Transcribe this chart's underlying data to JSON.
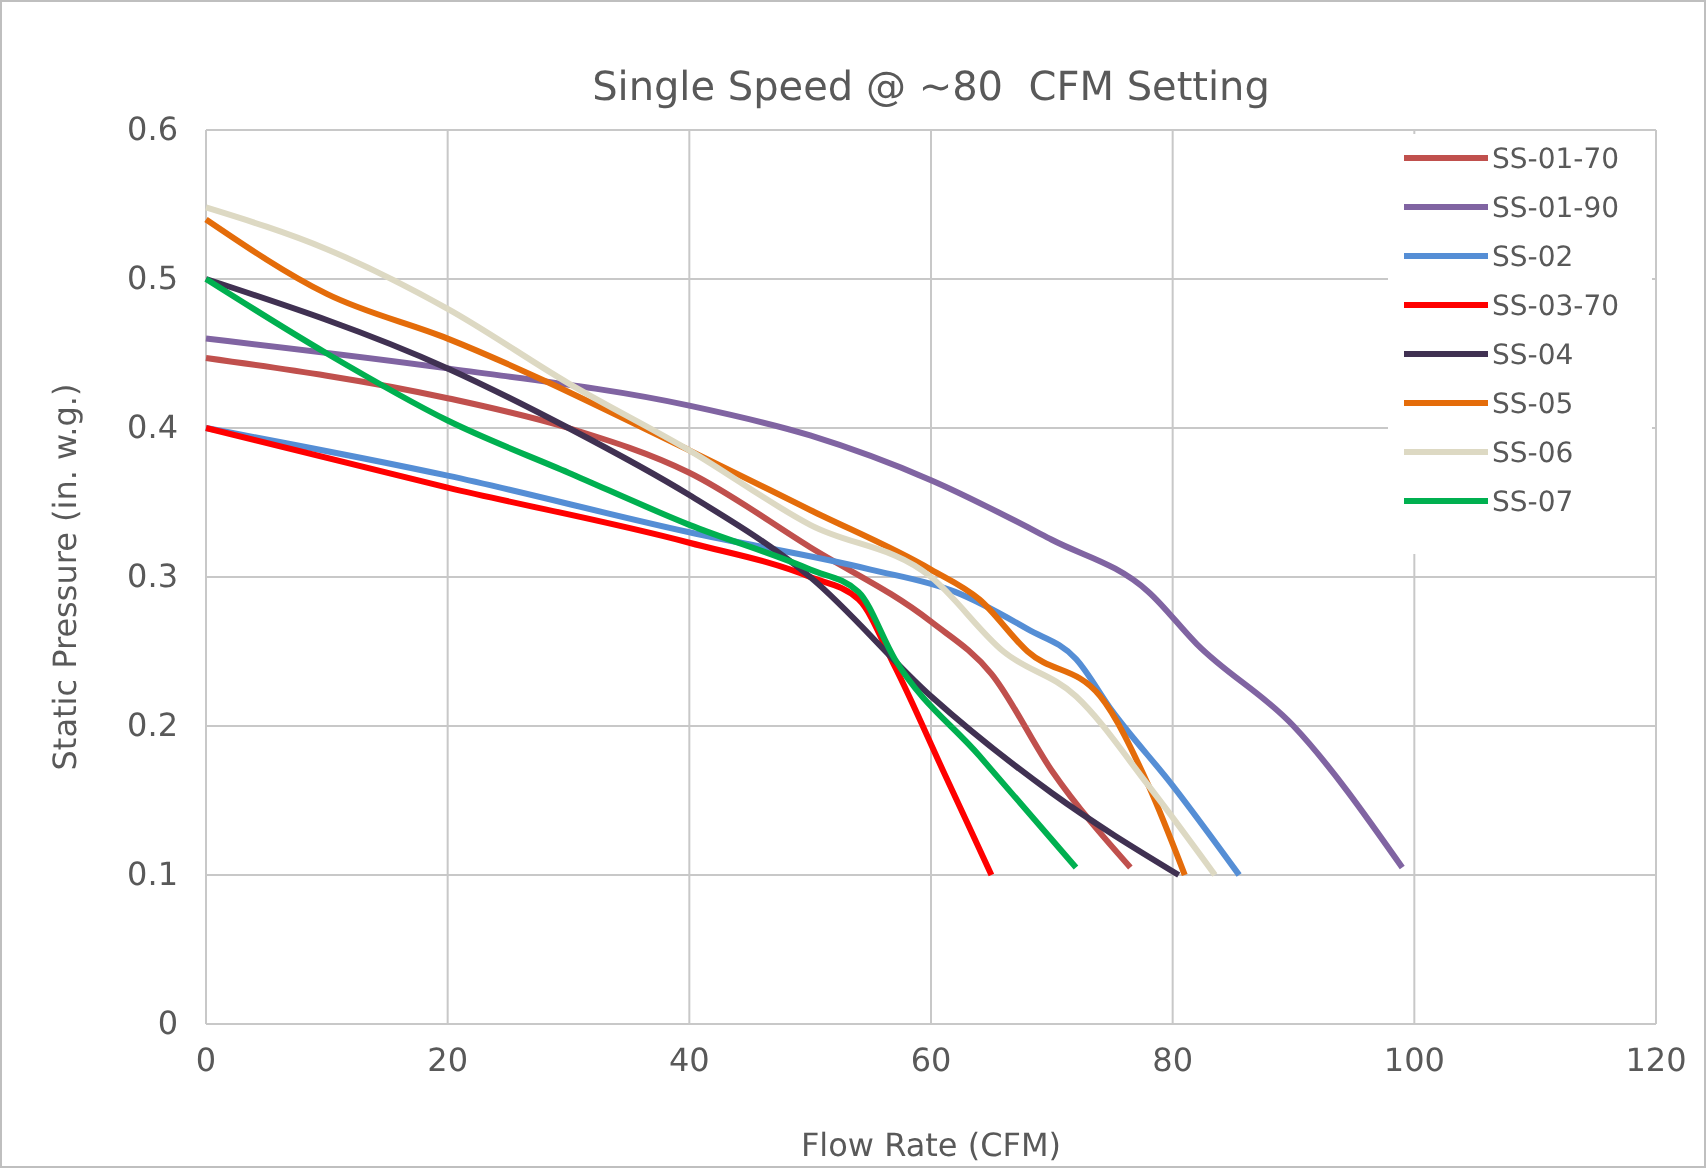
{
  "chart_data": {
    "type": "line",
    "title": "Single Speed @ ~80  CFM Setting",
    "xlabel": "Flow Rate (CFM)",
    "ylabel": "Static Pressure (in. w.g.)",
    "xlim": [
      0,
      120
    ],
    "xticks": [
      0,
      20,
      40,
      60,
      80,
      100,
      120
    ],
    "ylim": [
      0,
      0.6
    ],
    "yticks": [
      0,
      0.1,
      0.2,
      0.3,
      0.4,
      0.5,
      0.6
    ],
    "grid": true,
    "legend": "top right",
    "marker": "none",
    "line_style": "solid",
    "series": [
      {
        "name": "SS-01-70",
        "color": "#c0504d",
        "x": [
          0,
          20,
          30,
          40,
          50,
          60,
          65,
          70,
          76.5
        ],
        "values": [
          0.447,
          0.42,
          0.4,
          0.37,
          0.32,
          0.27,
          0.235,
          0.17,
          0.105
        ]
      },
      {
        "name": "SS-01-90",
        "color": "#8064a2",
        "x": [
          0,
          20,
          40,
          50,
          60,
          70,
          78,
          82,
          90,
          99
        ],
        "values": [
          0.46,
          0.44,
          0.415,
          0.395,
          0.365,
          0.325,
          0.29,
          0.255,
          0.2,
          0.105
        ]
      },
      {
        "name": "SS-02",
        "color": "#558ed5",
        "x": [
          0,
          20,
          40,
          55,
          62,
          68,
          72,
          75,
          80,
          85.5
        ],
        "values": [
          0.4,
          0.368,
          0.33,
          0.305,
          0.29,
          0.265,
          0.245,
          0.21,
          0.16,
          0.1
        ]
      },
      {
        "name": "SS-03-70",
        "color": "#ff0000",
        "x": [
          0,
          20,
          40,
          50,
          54,
          57,
          61,
          65
        ],
        "values": [
          0.4,
          0.36,
          0.323,
          0.3,
          0.285,
          0.24,
          0.17,
          0.1
        ]
      },
      {
        "name": "SS-04",
        "color": "#403152",
        "x": [
          0,
          20,
          30,
          40,
          50,
          60,
          70,
          80.5
        ],
        "values": [
          0.5,
          0.44,
          0.4,
          0.355,
          0.3,
          0.22,
          0.155,
          0.1
        ]
      },
      {
        "name": "SS-05",
        "color": "#e46c0a",
        "x": [
          0,
          10,
          20,
          40,
          50,
          60,
          64,
          68,
          74,
          78,
          81
        ],
        "values": [
          0.54,
          0.49,
          0.46,
          0.385,
          0.345,
          0.305,
          0.285,
          0.25,
          0.22,
          0.16,
          0.1
        ]
      },
      {
        "name": "SS-06",
        "color": "#ddd9c3",
        "x": [
          0,
          10,
          20,
          30,
          40,
          50,
          60,
          66,
          72,
          78,
          83.5
        ],
        "values": [
          0.548,
          0.52,
          0.48,
          0.43,
          0.385,
          0.335,
          0.3,
          0.25,
          0.22,
          0.16,
          0.1
        ]
      },
      {
        "name": "SS-07",
        "color": "#00b050",
        "x": [
          0,
          10,
          20,
          30,
          40,
          50,
          54,
          57,
          64,
          72
        ],
        "values": [
          0.5,
          0.45,
          0.405,
          0.37,
          0.335,
          0.305,
          0.29,
          0.245,
          0.18,
          0.105
        ]
      }
    ]
  }
}
